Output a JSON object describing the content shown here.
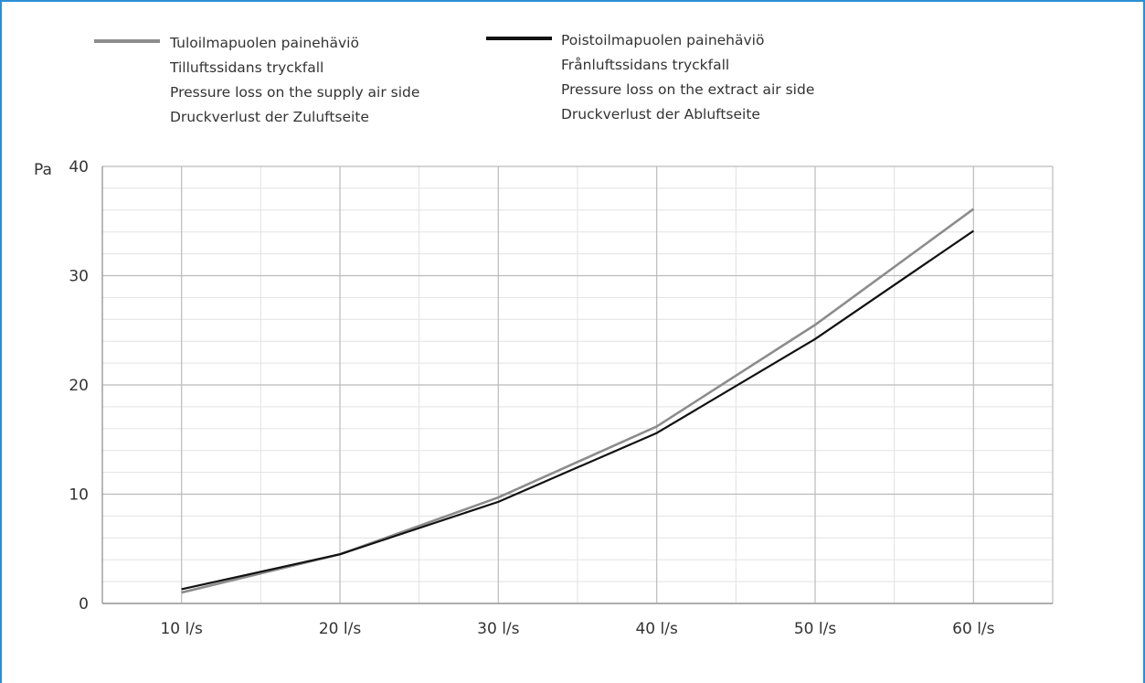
{
  "colors": {
    "frame": "#2b8fd6",
    "supply": "#8c8c8c",
    "extract": "#111111",
    "grid_major": "#bbbbbb",
    "grid_minor": "#e2e2e2",
    "axis": "#999999"
  },
  "legend": {
    "supply": {
      "lines": [
        "Tuloilmapuolen painehäviö",
        "Tilluftssidans tryckfall",
        "Pressure loss on the supply air side",
        "Druckverlust der Zuluftseite"
      ]
    },
    "extract": {
      "lines": [
        "Poistoilmapuolen painehäviö",
        "Frånluftssidans tryckfall",
        "Pressure loss on the extract air side",
        "Druckverlust der Abluftseite"
      ]
    }
  },
  "chart_data": {
    "type": "line",
    "ylabel": "Pa",
    "xlabel": "",
    "categories": [
      "10 l/s",
      "20 l/s",
      "30 l/s",
      "40 l/s",
      "50 l/s",
      "60 l/s"
    ],
    "x": [
      10,
      20,
      30,
      40,
      50,
      60
    ],
    "xlim": [
      5,
      65
    ],
    "ylim": [
      0,
      40
    ],
    "yticks": [
      0,
      10,
      20,
      30,
      40
    ],
    "grid": true,
    "legend_position": "top",
    "series": [
      {
        "name": "Tuloilmapuolen painehäviö",
        "color_key": "supply",
        "values": [
          1.0,
          4.5,
          9.7,
          16.2,
          25.5,
          36.1
        ]
      },
      {
        "name": "Poistoilmapuolen painehäviö",
        "color_key": "extract",
        "values": [
          1.3,
          4.5,
          9.3,
          15.6,
          24.2,
          34.1
        ]
      }
    ]
  }
}
